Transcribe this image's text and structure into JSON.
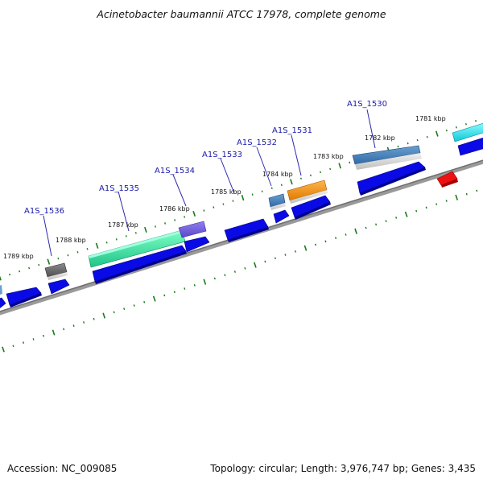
{
  "title": "Acinetobacter baumannii ATCC 17978, complete genome",
  "footer": {
    "accession": "Accession: NC_009085",
    "summary": "Topology: circular; Length: 3,976,747 bp; Genes: 3,435"
  },
  "colors": {
    "backbone": "#888888",
    "tick": "#1a7a1a",
    "gene_label": "#1a1aa8",
    "callout_line": "#2a2ab0",
    "cds_blue": "#0a0ae6"
  },
  "scale_labels": [
    {
      "text": "1781 kbp"
    },
    {
      "text": "1782 kbp"
    },
    {
      "text": "1783 kbp"
    },
    {
      "text": "1784 kbp"
    },
    {
      "text": "1785 kbp"
    },
    {
      "text": "1786 kbp"
    },
    {
      "text": "1787 kbp"
    },
    {
      "text": "1788 kbp"
    },
    {
      "text": "1789 kbp"
    }
  ],
  "gene_labels": [
    {
      "text": "A1S_1530"
    },
    {
      "text": "A1S_1531"
    },
    {
      "text": "A1S_1532"
    },
    {
      "text": "A1S_1533"
    },
    {
      "text": "A1S_1534"
    },
    {
      "text": "A1S_1535"
    },
    {
      "text": "A1S_1536"
    }
  ]
}
